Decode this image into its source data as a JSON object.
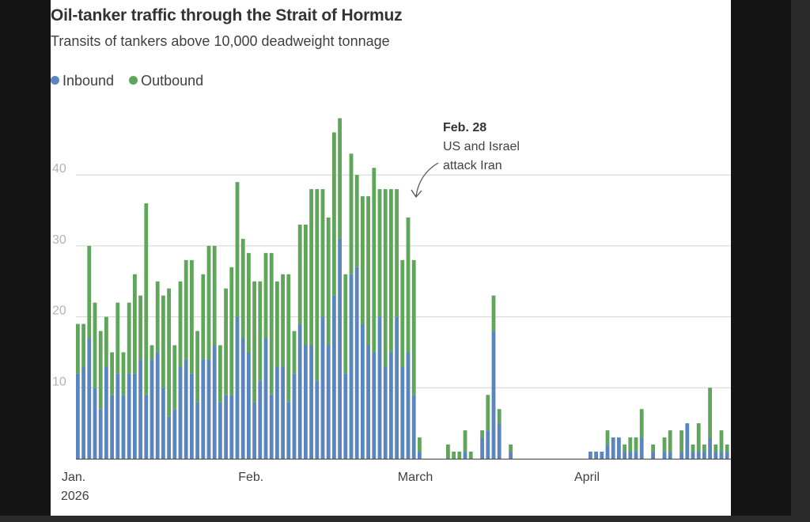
{
  "colors": {
    "inbound": "#5b85be",
    "outbound": "#5fa55a",
    "grid": "#d4d4d4",
    "text": "#404040",
    "tick": "#b3b3b3"
  },
  "chart_data": {
    "type": "bar",
    "stacked": true,
    "title": "Oil-tanker traffic through the Strait of Hormuz",
    "subtitle": "Transits of tankers above 10,000 deadweight tonnage",
    "legend": [
      {
        "name": "Inbound",
        "color": "#5b85be"
      },
      {
        "name": "Outbound",
        "color": "#5fa55a"
      }
    ],
    "ylim": [
      0,
      48
    ],
    "yticks": [
      10,
      20,
      30,
      40
    ],
    "grid": true,
    "xticks": [
      {
        "day": 0,
        "label": "Jan.",
        "sublabel": "2026"
      },
      {
        "day": 31,
        "label": "Feb.",
        "sublabel": ""
      },
      {
        "day": 59,
        "label": "March",
        "sublabel": ""
      },
      {
        "day": 90,
        "label": "April",
        "sublabel": ""
      }
    ],
    "series": [
      {
        "name": "Inbound",
        "values": [
          12,
          13,
          17,
          10,
          7,
          13,
          9,
          12,
          9,
          12,
          12,
          14,
          9,
          14,
          15,
          10,
          6,
          7,
          13,
          14,
          12,
          8,
          14,
          14,
          16,
          8,
          9,
          9,
          20,
          17,
          15,
          8,
          11,
          17,
          9,
          13,
          13,
          8,
          12,
          19,
          16,
          16,
          11,
          20,
          16,
          23,
          31,
          12,
          26,
          27,
          19,
          16,
          15,
          20,
          13,
          15,
          20,
          13,
          15,
          9,
          1,
          0,
          0,
          0,
          0,
          0,
          0,
          0,
          1,
          0,
          0,
          3,
          4,
          18,
          5,
          0,
          1,
          0,
          0,
          0,
          0,
          0,
          0,
          0,
          0,
          0,
          0,
          0,
          0,
          0,
          1,
          1,
          1,
          2,
          3,
          3,
          1,
          1,
          1,
          3,
          0,
          1,
          0,
          1,
          1,
          0,
          1,
          5,
          1,
          1,
          1,
          3,
          1,
          1,
          1
        ]
      },
      {
        "name": "Outbound",
        "values": [
          7,
          6,
          13,
          12,
          11,
          7,
          6,
          10,
          6,
          10,
          14,
          9,
          27,
          2,
          10,
          13,
          18,
          9,
          12,
          14,
          16,
          10,
          12,
          16,
          14,
          8,
          15,
          18,
          19,
          14,
          14,
          17,
          14,
          12,
          20,
          12,
          13,
          18,
          6,
          14,
          17,
          22,
          27,
          18,
          18,
          23,
          17,
          14,
          17,
          13,
          18,
          21,
          26,
          18,
          25,
          23,
          18,
          15,
          19,
          19,
          2,
          0,
          0,
          0,
          0,
          2,
          1,
          1,
          3,
          1,
          0,
          1,
          5,
          5,
          2,
          0,
          1,
          0,
          0,
          0,
          0,
          0,
          0,
          0,
          0,
          0,
          0,
          0,
          0,
          0,
          0,
          0,
          0,
          2,
          0,
          0,
          1,
          2,
          2,
          4,
          0,
          1,
          0,
          2,
          3,
          0,
          3,
          0,
          1,
          4,
          1,
          7,
          1,
          3,
          1
        ]
      }
    ],
    "annotation": {
      "title": "Feb. 28",
      "lines": [
        "US and Israel",
        "attack Iran"
      ],
      "day": 58
    }
  }
}
